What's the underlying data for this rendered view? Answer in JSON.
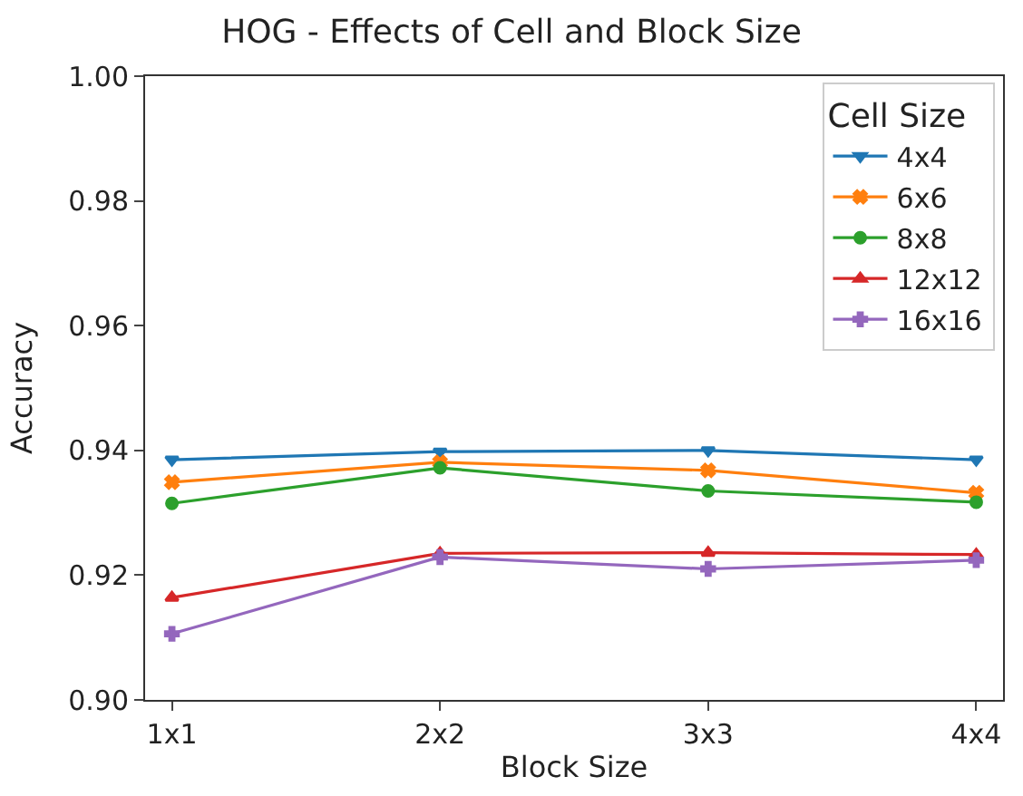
{
  "chart_data": {
    "type": "line",
    "title": "HOG - Effects of Cell and Block Size",
    "xlabel": "Block Size",
    "ylabel": "Accuracy",
    "legend_title": "Cell Size",
    "legend": "top right",
    "grid": false,
    "categories": [
      "1x1",
      "2x2",
      "3x3",
      "4x4"
    ],
    "ylim": [
      0.9,
      1.0
    ],
    "yticks": [
      {
        "value": 0.9,
        "label": "0.90"
      },
      {
        "value": 0.92,
        "label": "0.92"
      },
      {
        "value": 0.94,
        "label": "0.94"
      },
      {
        "value": 0.96,
        "label": "0.96"
      },
      {
        "value": 0.98,
        "label": "0.98"
      },
      {
        "value": 1.0,
        "label": "1.00"
      }
    ],
    "series": [
      {
        "name": "4x4",
        "color": "#1f77b4",
        "marker": "triangle-down",
        "values": [
          0.9385,
          0.9398,
          0.94,
          0.9385
        ]
      },
      {
        "name": "6x6",
        "color": "#ff7f0e",
        "marker": "x",
        "values": [
          0.9349,
          0.9381,
          0.9368,
          0.9332
        ]
      },
      {
        "name": "8x8",
        "color": "#2ca02c",
        "marker": "circle",
        "values": [
          0.9315,
          0.9372,
          0.9335,
          0.9317
        ]
      },
      {
        "name": "12x12",
        "color": "#d62728",
        "marker": "triangle",
        "values": [
          0.9164,
          0.9235,
          0.9236,
          0.9233
        ]
      },
      {
        "name": "16x16",
        "color": "#9467bd",
        "marker": "cross",
        "values": [
          0.9106,
          0.9229,
          0.921,
          0.9224
        ]
      }
    ]
  }
}
